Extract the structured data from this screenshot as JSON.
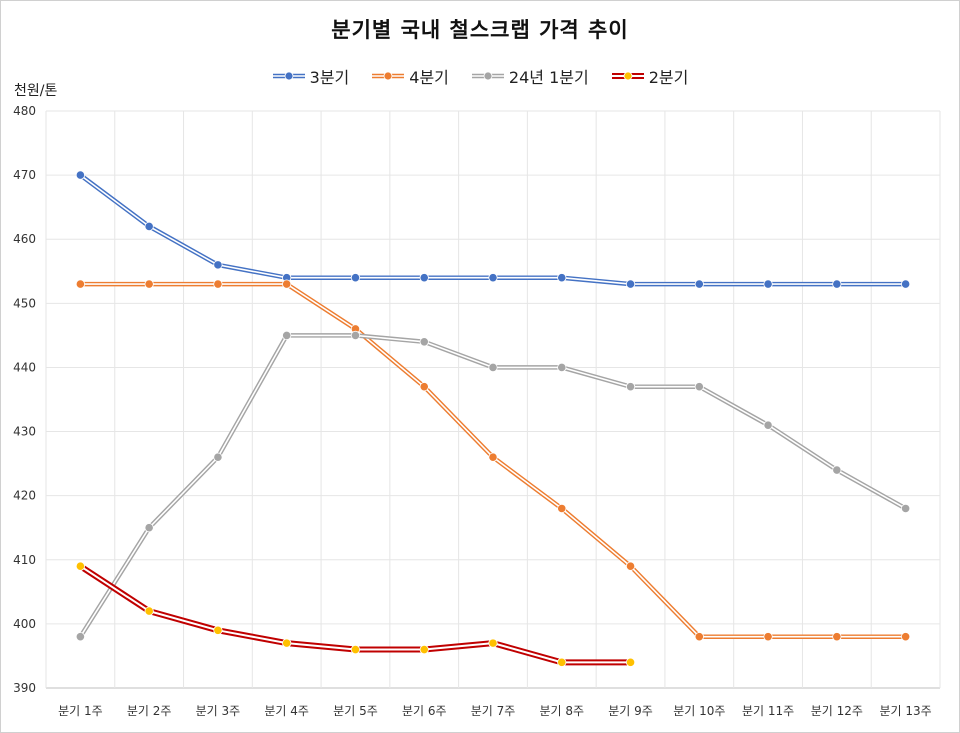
{
  "chart_data": {
    "type": "line",
    "title": "분기별 국내 철스크랩 가격 추이",
    "ylabel": "천원/톤",
    "xlabel": "",
    "categories": [
      "분기 1주",
      "분기 2주",
      "분기 3주",
      "분기 4주",
      "분기 5주",
      "분기 6주",
      "분기 7주",
      "분기 8주",
      "분기 9주",
      "분기 10주",
      "분기 11주",
      "분기 12주",
      "분기 13주"
    ],
    "ylim": [
      390,
      480
    ],
    "yticks": [
      390,
      400,
      410,
      420,
      430,
      440,
      450,
      460,
      470,
      480
    ],
    "grid": true,
    "legend_position": "top",
    "series": [
      {
        "name": "3분기",
        "color": "#4472c4",
        "marker": "#4472c4",
        "values": [
          470,
          462,
          456,
          454,
          454,
          454,
          454,
          454,
          453,
          453,
          453,
          453,
          453
        ]
      },
      {
        "name": "4분기",
        "color": "#ed7d31",
        "marker": "#ed7d31",
        "values": [
          453,
          453,
          453,
          453,
          446,
          437,
          426,
          418,
          409,
          398,
          398,
          398,
          398
        ]
      },
      {
        "name": "24년 1분기",
        "color": "#a5a5a5",
        "marker": "#a5a5a5",
        "values": [
          398,
          415,
          426,
          445,
          445,
          444,
          440,
          440,
          437,
          437,
          431,
          424,
          418
        ]
      },
      {
        "name": "2분기",
        "color": "#c00000",
        "marker": "#ffc000",
        "values": [
          409,
          402,
          399,
          397,
          396,
          396,
          397,
          394,
          394,
          null,
          null,
          null,
          null
        ]
      }
    ]
  }
}
